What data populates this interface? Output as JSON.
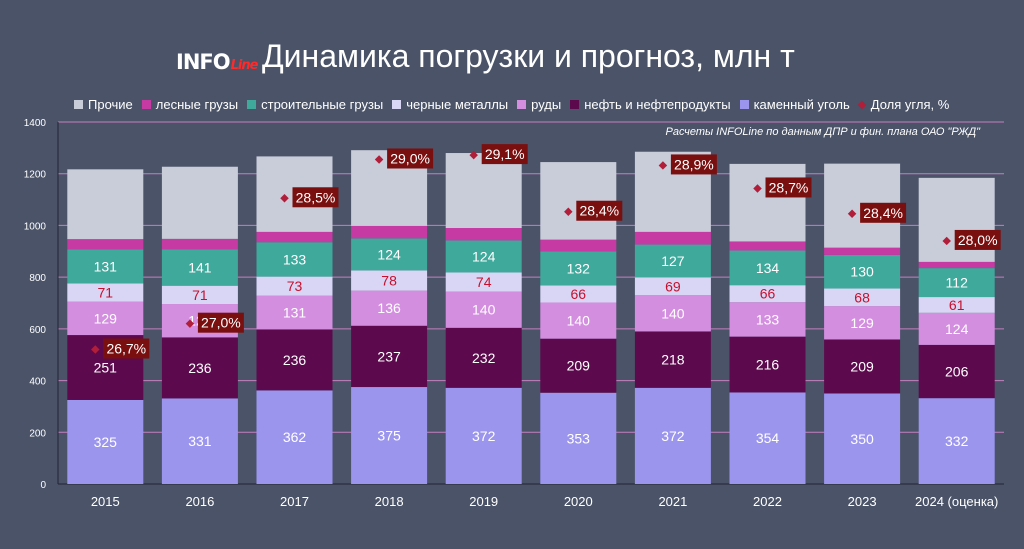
{
  "header": {
    "logo_text": "INFO",
    "logo_sub": "Line",
    "title": "Динамика погрузки и прогноз, млн т"
  },
  "note": "Расчеты INFOLine по данным ДПР и фин. плана ОАО \"РЖД\"",
  "colors": {
    "background": "#4a5368",
    "gridline": "#c57fbf",
    "coal": "#9b95ee",
    "oil": "#5c0a4d",
    "ore": "#d48ee0",
    "metals": "#d8d6f4",
    "construction": "#3fa99c",
    "timber": "#c63aa4",
    "other": "#c9ccd9",
    "marker": "#b11e3a",
    "share_label_bg": "#7a0f0f"
  },
  "chart_data": {
    "type": "bar",
    "stacked": true,
    "categories": [
      "2015",
      "2016",
      "2017",
      "2018",
      "2019",
      "2020",
      "2021",
      "2022",
      "2023",
      "2024 (оценка)"
    ],
    "ylim": [
      0,
      1400
    ],
    "yticks": [
      0,
      200,
      400,
      600,
      800,
      1000,
      1200,
      1400
    ],
    "grid": true,
    "legend_position": "top",
    "series": [
      {
        "key": "coal",
        "name": "каменный уголь",
        "values": [
          325,
          331,
          362,
          375,
          372,
          353,
          372,
          354,
          350,
          332
        ],
        "label_color": "#ffffff"
      },
      {
        "key": "oil",
        "name": "нефть и нефтепродукты",
        "values": [
          251,
          236,
          236,
          237,
          232,
          209,
          218,
          216,
          209,
          206
        ],
        "label_color": "#ffffff"
      },
      {
        "key": "ore",
        "name": "руды",
        "values": [
          129,
          129,
          131,
          136,
          140,
          140,
          140,
          133,
          129,
          124
        ],
        "label_color": "#ffffff"
      },
      {
        "key": "metals",
        "name": "черные металлы",
        "values": [
          71,
          71,
          73,
          78,
          74,
          66,
          69,
          66,
          68,
          61
        ],
        "label_color": "#c8102e"
      },
      {
        "key": "construction",
        "name": "строительные грузы",
        "values": [
          131,
          141,
          133,
          124,
          124,
          132,
          127,
          134,
          130,
          112
        ],
        "label_color": "#ffffff"
      },
      {
        "key": "timber",
        "name": "лесные грузы",
        "values": [
          40,
          40,
          40,
          48,
          48,
          45,
          49,
          35,
          28,
          24
        ],
        "label_color": null
      },
      {
        "key": "other",
        "name": "Прочие",
        "values": [
          270,
          279,
          292,
          293,
          290,
          300,
          310,
          300,
          325,
          325
        ],
        "label_color": null
      }
    ],
    "share_series": {
      "name": "Доля угля, %",
      "values": [
        26.7,
        27.0,
        28.5,
        29.0,
        29.1,
        28.4,
        28.9,
        28.7,
        28.4,
        28.0
      ],
      "labels": [
        "26,7%",
        "27,0%",
        "28,5%",
        "29,0%",
        "29,1%",
        "28,4%",
        "28,9%",
        "28,7%",
        "28,4%",
        "28,0%"
      ],
      "marker_y": [
        520,
        620,
        1105,
        1255,
        1272,
        1053,
        1232,
        1143,
        1045,
        940
      ]
    },
    "legend_order": [
      "other",
      "timber",
      "construction",
      "metals",
      "ore",
      "oil",
      "coal",
      "share"
    ]
  }
}
